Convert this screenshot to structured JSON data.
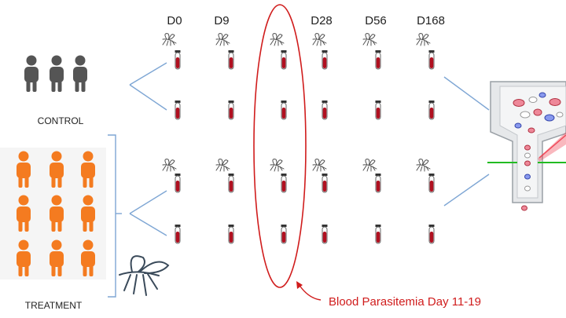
{
  "days": [
    "D0",
    "D9",
    "D28",
    "D56",
    "D168"
  ],
  "groups": {
    "control": {
      "label": "CONTROL",
      "color": "#555555"
    },
    "treatment": {
      "label": "TREATMENT",
      "color": "#f47b20"
    }
  },
  "annotation": {
    "label": "Blood Parasitemia Day 11-19",
    "color": "#d01c1c"
  },
  "colors": {
    "line": "#7ea6d4",
    "tube_blood": "#b01020",
    "laser_green": "#22bb22",
    "laser_red": "#ee3344"
  },
  "icons": [
    "person-icon",
    "mosquito-icon",
    "blood-tube-icon",
    "flow-cytometer-icon"
  ]
}
